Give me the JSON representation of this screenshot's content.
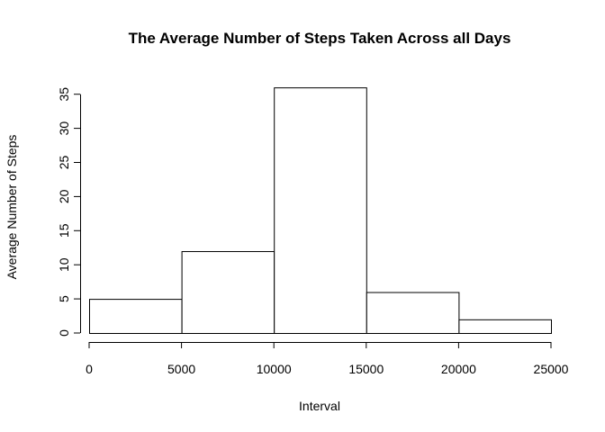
{
  "chart_data": {
    "type": "bar",
    "title": "The Average Number of Steps Taken Across all Days",
    "xlabel": "Interval",
    "ylabel": "Average Number of Steps",
    "bins": [
      {
        "from": 0,
        "to": 5000,
        "value": 5
      },
      {
        "from": 5000,
        "to": 10000,
        "value": 12
      },
      {
        "from": 10000,
        "to": 15000,
        "value": 36
      },
      {
        "from": 15000,
        "to": 20000,
        "value": 6
      },
      {
        "from": 20000,
        "to": 25000,
        "value": 2
      }
    ],
    "xlim": [
      0,
      25000
    ],
    "ylim": [
      0,
      36
    ],
    "x_ticks": [
      0,
      5000,
      10000,
      15000,
      20000,
      25000
    ],
    "x_tick_labels": [
      "0",
      "5000",
      "10000",
      "15000",
      "20000",
      "25000"
    ],
    "y_ticks": [
      0,
      5,
      10,
      15,
      20,
      25,
      30,
      35
    ],
    "y_tick_labels": [
      "0",
      "5",
      "10",
      "15",
      "20",
      "25",
      "30",
      "35"
    ],
    "grid": false,
    "colors": {
      "bar_fill": "#ffffff",
      "bar_stroke": "#000000"
    }
  }
}
